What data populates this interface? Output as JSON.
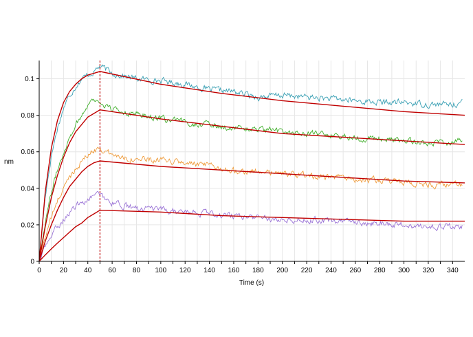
{
  "chart_data": {
    "type": "line",
    "title": "",
    "xlabel": "Time (s)",
    "ylabel": "nm",
    "xlim": [
      0,
      350
    ],
    "ylim": [
      0,
      0.11
    ],
    "x_ticks": [
      0,
      10,
      20,
      30,
      40,
      50,
      60,
      70,
      80,
      90,
      100,
      110,
      120,
      130,
      140,
      150,
      160,
      170,
      180,
      190,
      200,
      210,
      220,
      230,
      240,
      250,
      260,
      270,
      280,
      290,
      300,
      310,
      320,
      330,
      340
    ],
    "x_tick_labels": [
      "0",
      "20",
      "40",
      "60",
      "80",
      "100",
      "120",
      "140",
      "160",
      "180",
      "200",
      "220",
      "240",
      "260",
      "280",
      "300",
      "320",
      "340"
    ],
    "y_tick_labels": [
      "0",
      "0.02",
      "0.04",
      "0.06",
      "0.08",
      "0.1"
    ],
    "grid": true,
    "legend": "none",
    "annotations": [
      {
        "type": "vertical-dashed-line",
        "x": 50,
        "color": "#c00000"
      }
    ],
    "fit_color": "#c00000",
    "series": [
      {
        "color": "#3aa0b4",
        "data": [
          [
            0,
            0
          ],
          [
            5,
            0.036
          ],
          [
            10,
            0.058
          ],
          [
            15,
            0.073
          ],
          [
            20,
            0.084
          ],
          [
            25,
            0.091
          ],
          [
            30,
            0.096
          ],
          [
            35,
            0.1
          ],
          [
            40,
            0.102
          ],
          [
            45,
            0.104
          ],
          [
            50,
            0.107
          ],
          [
            60,
            0.103
          ],
          [
            80,
            0.1
          ],
          [
            100,
            0.099
          ],
          [
            120,
            0.097
          ],
          [
            140,
            0.094
          ],
          [
            160,
            0.093
          ],
          [
            180,
            0.09
          ],
          [
            200,
            0.091
          ],
          [
            220,
            0.09
          ],
          [
            240,
            0.089
          ],
          [
            260,
            0.088
          ],
          [
            280,
            0.087
          ],
          [
            300,
            0.087
          ],
          [
            320,
            0.086
          ],
          [
            340,
            0.086
          ],
          [
            348,
            0.087
          ]
        ]
      },
      {
        "color": "#3fae2a",
        "data": [
          [
            0,
            0
          ],
          [
            5,
            0.022
          ],
          [
            10,
            0.038
          ],
          [
            15,
            0.05
          ],
          [
            20,
            0.06
          ],
          [
            25,
            0.068
          ],
          [
            30,
            0.075
          ],
          [
            35,
            0.08
          ],
          [
            40,
            0.086
          ],
          [
            45,
            0.089
          ],
          [
            50,
            0.087
          ],
          [
            60,
            0.083
          ],
          [
            80,
            0.081
          ],
          [
            100,
            0.078
          ],
          [
            120,
            0.076
          ],
          [
            140,
            0.075
          ],
          [
            160,
            0.073
          ],
          [
            180,
            0.072
          ],
          [
            200,
            0.071
          ],
          [
            220,
            0.07
          ],
          [
            240,
            0.069
          ],
          [
            260,
            0.068
          ],
          [
            280,
            0.067
          ],
          [
            300,
            0.066
          ],
          [
            320,
            0.065
          ],
          [
            340,
            0.065
          ],
          [
            348,
            0.066
          ]
        ]
      },
      {
        "color": "#ef9b3a",
        "data": [
          [
            0,
            0
          ],
          [
            5,
            0.014
          ],
          [
            10,
            0.024
          ],
          [
            15,
            0.033
          ],
          [
            20,
            0.04
          ],
          [
            25,
            0.046
          ],
          [
            30,
            0.051
          ],
          [
            35,
            0.055
          ],
          [
            40,
            0.058
          ],
          [
            45,
            0.061
          ],
          [
            50,
            0.062
          ],
          [
            60,
            0.058
          ],
          [
            80,
            0.056
          ],
          [
            100,
            0.055
          ],
          [
            120,
            0.054
          ],
          [
            140,
            0.052
          ],
          [
            160,
            0.05
          ],
          [
            180,
            0.049
          ],
          [
            200,
            0.048
          ],
          [
            220,
            0.047
          ],
          [
            240,
            0.046
          ],
          [
            260,
            0.045
          ],
          [
            280,
            0.044
          ],
          [
            300,
            0.043
          ],
          [
            320,
            0.042
          ],
          [
            340,
            0.042
          ],
          [
            348,
            0.042
          ]
        ]
      },
      {
        "color": "#9a73d6",
        "data": [
          [
            0,
            0
          ],
          [
            5,
            0.008
          ],
          [
            10,
            0.014
          ],
          [
            15,
            0.019
          ],
          [
            20,
            0.023
          ],
          [
            25,
            0.027
          ],
          [
            30,
            0.03
          ],
          [
            35,
            0.032
          ],
          [
            40,
            0.034
          ],
          [
            45,
            0.036
          ],
          [
            50,
            0.037
          ],
          [
            60,
            0.032
          ],
          [
            80,
            0.029
          ],
          [
            100,
            0.028
          ],
          [
            120,
            0.027
          ],
          [
            140,
            0.026
          ],
          [
            160,
            0.025
          ],
          [
            180,
            0.024
          ],
          [
            200,
            0.023
          ],
          [
            220,
            0.023
          ],
          [
            240,
            0.022
          ],
          [
            260,
            0.021
          ],
          [
            280,
            0.021
          ],
          [
            300,
            0.02
          ],
          [
            320,
            0.019
          ],
          [
            340,
            0.019
          ],
          [
            348,
            0.019
          ]
        ]
      },
      {
        "color": "#c00000",
        "role": "fit",
        "data": [
          [
            0,
            0
          ],
          [
            5,
            0.038
          ],
          [
            10,
            0.062
          ],
          [
            15,
            0.077
          ],
          [
            20,
            0.087
          ],
          [
            25,
            0.093
          ],
          [
            30,
            0.097
          ],
          [
            35,
            0.1
          ],
          [
            40,
            0.102
          ],
          [
            45,
            0.103
          ],
          [
            50,
            0.104
          ],
          [
            100,
            0.097
          ],
          [
            150,
            0.092
          ],
          [
            200,
            0.088
          ],
          [
            250,
            0.085
          ],
          [
            300,
            0.082
          ],
          [
            350,
            0.08
          ]
        ]
      },
      {
        "color": "#c00000",
        "role": "fit",
        "data": [
          [
            0,
            0
          ],
          [
            5,
            0.019
          ],
          [
            10,
            0.035
          ],
          [
            15,
            0.047
          ],
          [
            20,
            0.057
          ],
          [
            25,
            0.065
          ],
          [
            30,
            0.071
          ],
          [
            35,
            0.075
          ],
          [
            40,
            0.079
          ],
          [
            45,
            0.081
          ],
          [
            50,
            0.083
          ],
          [
            100,
            0.078
          ],
          [
            150,
            0.074
          ],
          [
            200,
            0.07
          ],
          [
            250,
            0.068
          ],
          [
            300,
            0.066
          ],
          [
            350,
            0.064
          ]
        ]
      },
      {
        "color": "#c00000",
        "role": "fit",
        "data": [
          [
            0,
            0
          ],
          [
            5,
            0.011
          ],
          [
            10,
            0.02
          ],
          [
            15,
            0.028
          ],
          [
            20,
            0.035
          ],
          [
            25,
            0.041
          ],
          [
            30,
            0.045
          ],
          [
            35,
            0.049
          ],
          [
            40,
            0.052
          ],
          [
            45,
            0.054
          ],
          [
            50,
            0.055
          ],
          [
            100,
            0.052
          ],
          [
            150,
            0.05
          ],
          [
            200,
            0.048
          ],
          [
            250,
            0.046
          ],
          [
            300,
            0.044
          ],
          [
            350,
            0.043
          ]
        ]
      },
      {
        "color": "#c00000",
        "role": "fit",
        "data": [
          [
            0,
            0
          ],
          [
            5,
            0.0035
          ],
          [
            10,
            0.0068
          ],
          [
            15,
            0.01
          ],
          [
            20,
            0.013
          ],
          [
            25,
            0.016
          ],
          [
            30,
            0.019
          ],
          [
            35,
            0.021
          ],
          [
            40,
            0.024
          ],
          [
            45,
            0.026
          ],
          [
            50,
            0.028
          ],
          [
            100,
            0.027
          ],
          [
            150,
            0.025
          ],
          [
            200,
            0.024
          ],
          [
            250,
            0.023
          ],
          [
            300,
            0.022
          ],
          [
            350,
            0.022
          ]
        ]
      }
    ]
  }
}
